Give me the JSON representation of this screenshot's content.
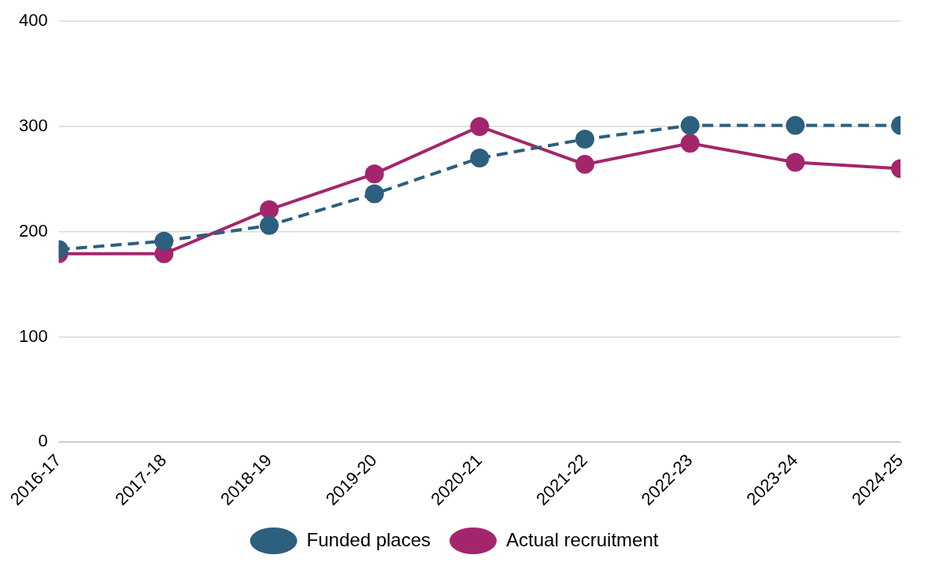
{
  "chart_data": {
    "type": "line",
    "categories": [
      "2016-17",
      "2017-18",
      "2018-19",
      "2019-20",
      "2020-21",
      "2021-22",
      "2022-23",
      "2023-24",
      "2024-25"
    ],
    "series": [
      {
        "name": "Funded places",
        "color": "#2d5f7e",
        "line_style": "dashed",
        "marker": "circle",
        "values": [
          183,
          191,
          206,
          236,
          270,
          288,
          301,
          301,
          301
        ]
      },
      {
        "name": "Actual recruitment",
        "color": "#a3266c",
        "line_style": "solid",
        "marker": "circle",
        "values": [
          179,
          179,
          221,
          255,
          300,
          264,
          284,
          266,
          260
        ]
      }
    ],
    "ylim": [
      0,
      400
    ],
    "yticks": [
      0,
      100,
      200,
      300,
      400
    ],
    "grid": true,
    "legend": "bottom"
  }
}
